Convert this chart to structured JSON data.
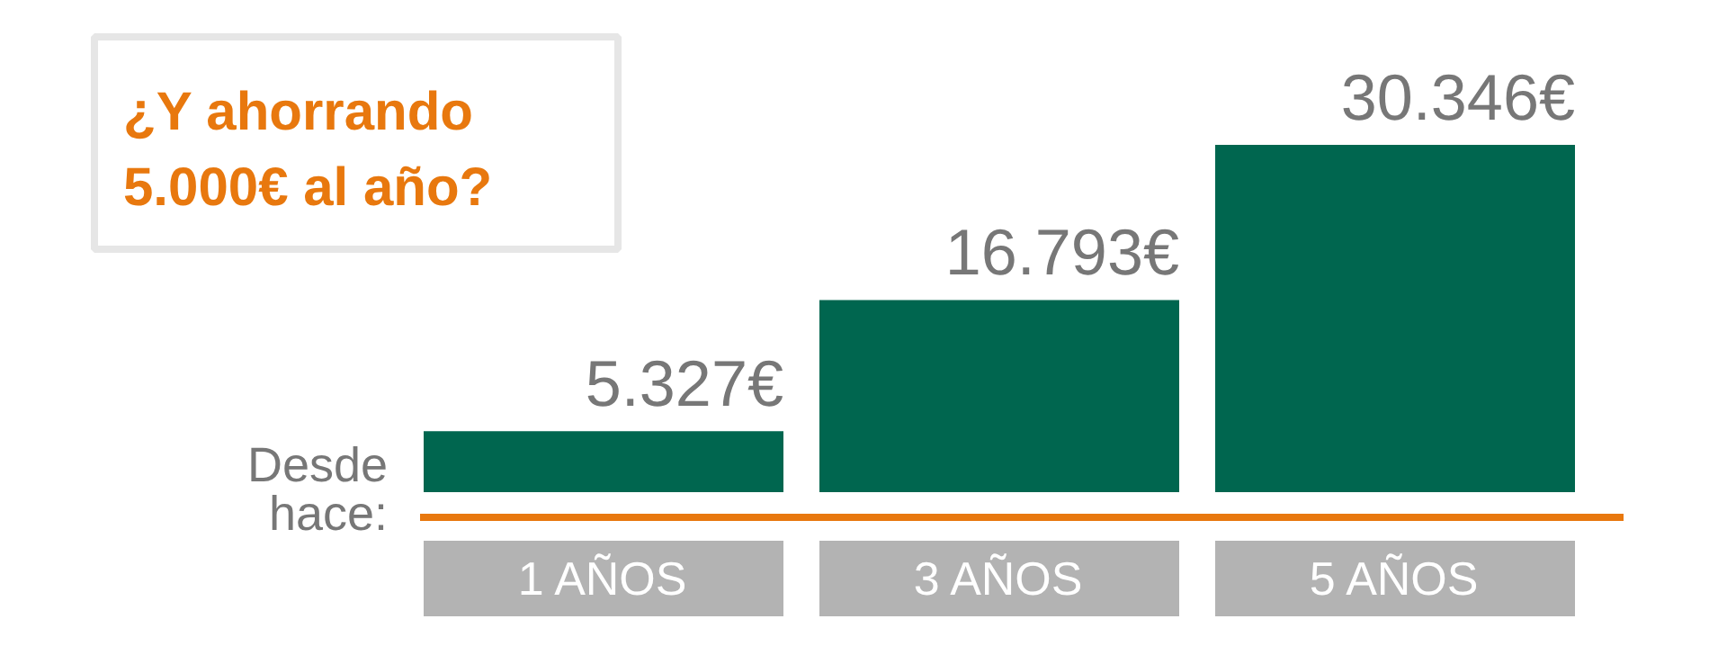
{
  "chart_data": {
    "type": "bar",
    "title": "¿Y ahorrando 5.000€ al año?",
    "xlabel": "Desde hace:",
    "categories": [
      "1 AÑOS",
      "3 AÑOS",
      "5 AÑOS"
    ],
    "values": [
      5327,
      16793,
      30346
    ],
    "value_labels": [
      "5.327€",
      "16.793€",
      "30.346€"
    ],
    "color": "#00664f"
  }
}
